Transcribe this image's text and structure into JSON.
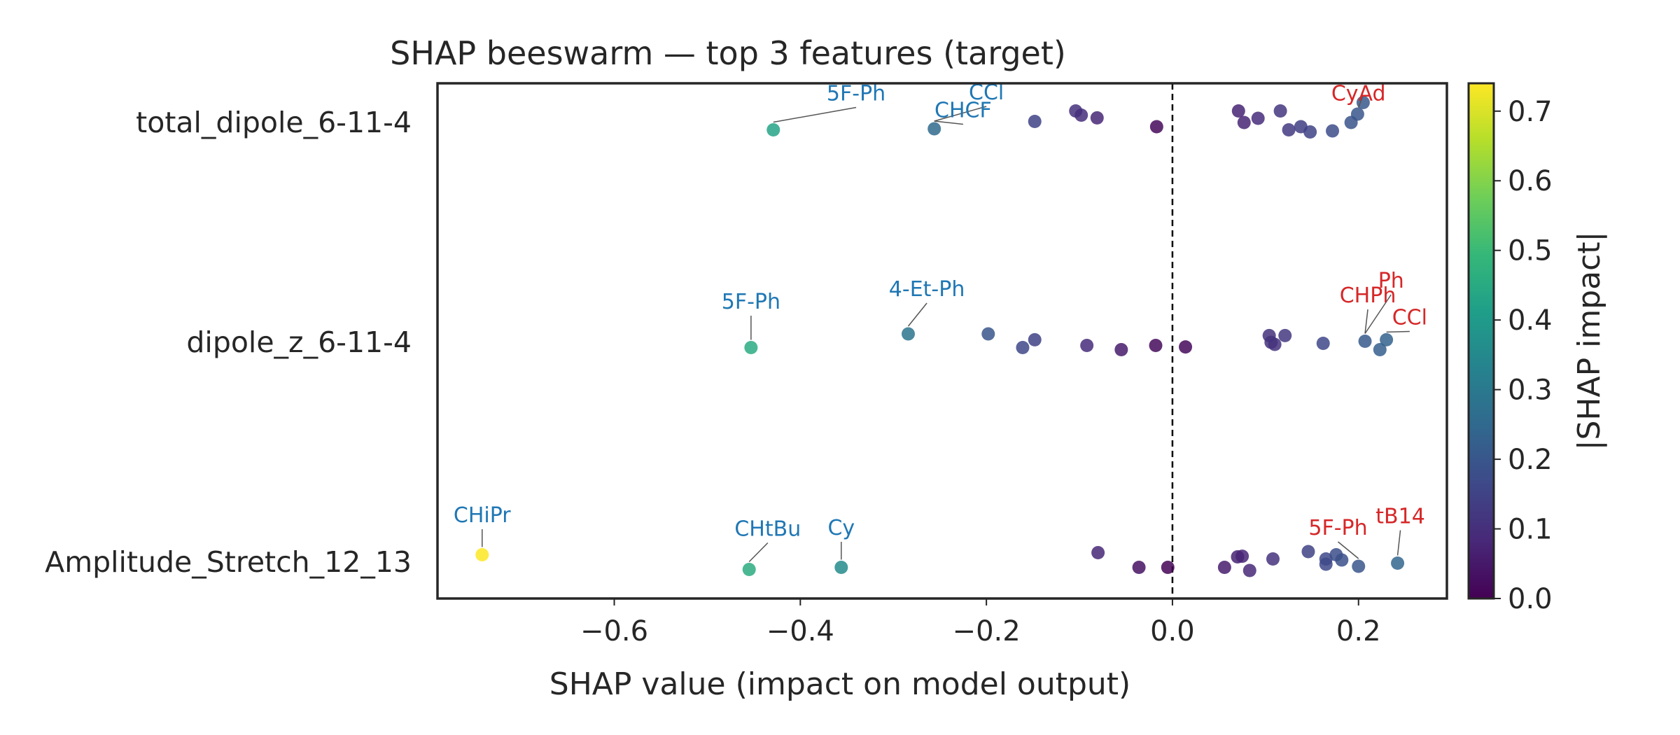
{
  "chart_data": {
    "type": "scatter",
    "title": "SHAP beeswarm — top 3 features (target)",
    "xlabel": "SHAP value (impact on model output)",
    "xlim": [
      -0.79,
      0.295
    ],
    "xticks": [
      -0.6,
      -0.4,
      -0.2,
      0.0,
      0.2
    ],
    "xtick_labels": [
      "−0.6",
      "−0.4",
      "−0.2",
      "0.0",
      "0.2"
    ],
    "zero_line": true,
    "colorbar": {
      "label": "|SHAP impact|",
      "range": [
        0.0,
        0.74
      ],
      "ticks": [
        0.0,
        0.1,
        0.2,
        0.3,
        0.4,
        0.5,
        0.6,
        0.7
      ],
      "tick_labels": [
        "0.0",
        "0.1",
        "0.2",
        "0.3",
        "0.4",
        "0.5",
        "0.6",
        "0.7"
      ],
      "colormap": "viridis"
    },
    "annotation_colors": {
      "negative": "#1f77b4",
      "positive": "#d62728"
    },
    "features": [
      {
        "name": "total_dipole_6-11-4",
        "points": [
          {
            "x": -0.429,
            "jitter": -0.035
          },
          {
            "x": -0.256,
            "jitter": -0.03
          },
          {
            "x": -0.148,
            "jitter": 0.005
          },
          {
            "x": -0.104,
            "jitter": 0.055
          },
          {
            "x": -0.098,
            "jitter": 0.035
          },
          {
            "x": -0.081,
            "jitter": 0.022
          },
          {
            "x": -0.017,
            "jitter": -0.02
          },
          {
            "x": 0.071,
            "jitter": 0.055
          },
          {
            "x": 0.077,
            "jitter": 0.0
          },
          {
            "x": 0.092,
            "jitter": 0.02
          },
          {
            "x": 0.116,
            "jitter": 0.055
          },
          {
            "x": 0.125,
            "jitter": -0.035
          },
          {
            "x": 0.138,
            "jitter": -0.02
          },
          {
            "x": 0.148,
            "jitter": -0.045
          },
          {
            "x": 0.172,
            "jitter": -0.04
          },
          {
            "x": 0.192,
            "jitter": 0.0
          },
          {
            "x": 0.199,
            "jitter": 0.04
          },
          {
            "x": 0.205,
            "jitter": 0.095
          }
        ],
        "annotations": [
          {
            "text": "5F-Ph",
            "x": -0.429,
            "jitter": -0.035,
            "side": "negative",
            "tx": -0.34,
            "ty": 0.105
          },
          {
            "text": "CCl\u0003",
            "x": -0.256,
            "jitter": -0.03,
            "side": "negative",
            "tx": -0.2,
            "ty": 0.11
          },
          {
            "text": "CH\u0003CF\u0003",
            "x": -0.256,
            "jitter": -0.03,
            "side": "negative",
            "tx": -0.225,
            "ty": 0.025
          },
          {
            "text": "CyAd",
            "x": 0.205,
            "jitter": 0.095,
            "side": "positive",
            "tx": 0.2,
            "ty": 0.105
          }
        ]
      },
      {
        "name": "dipole_z_6-11-4",
        "points": [
          {
            "x": -0.453,
            "jitter": -0.025
          },
          {
            "x": -0.284,
            "jitter": 0.04
          },
          {
            "x": -0.198,
            "jitter": 0.04
          },
          {
            "x": -0.148,
            "jitter": 0.012
          },
          {
            "x": -0.161,
            "jitter": -0.025
          },
          {
            "x": -0.092,
            "jitter": -0.015
          },
          {
            "x": -0.055,
            "jitter": -0.035
          },
          {
            "x": -0.018,
            "jitter": -0.015
          },
          {
            "x": 0.014,
            "jitter": -0.022
          },
          {
            "x": 0.104,
            "jitter": 0.032
          },
          {
            "x": 0.106,
            "jitter": 0.0
          },
          {
            "x": 0.11,
            "jitter": -0.01
          },
          {
            "x": 0.121,
            "jitter": 0.032
          },
          {
            "x": 0.162,
            "jitter": -0.005
          },
          {
            "x": 0.207,
            "jitter": 0.005
          },
          {
            "x": 0.223,
            "jitter": -0.035
          },
          {
            "x": 0.23,
            "jitter": 0.012
          }
        ],
        "annotations": [
          {
            "text": "5F-Ph",
            "x": -0.453,
            "jitter": -0.025,
            "side": "negative",
            "tx": -0.453,
            "ty": 0.16
          },
          {
            "text": "4-Et-Ph",
            "x": -0.284,
            "jitter": 0.04,
            "side": "negative",
            "tx": -0.264,
            "ty": 0.22
          },
          {
            "text": "Ph",
            "x": 0.207,
            "jitter": 0.005,
            "side": "positive",
            "tx": 0.235,
            "ty": 0.26
          },
          {
            "text": "CHPh\u0003",
            "x": 0.207,
            "jitter": 0.005,
            "side": "positive",
            "tx": 0.21,
            "ty": 0.19
          },
          {
            "text": "CCl\u0003",
            "x": 0.23,
            "jitter": 0.012,
            "side": "positive",
            "tx": 0.255,
            "ty": 0.085
          }
        ]
      },
      {
        "name": "Amplitude_Stretch_12_13",
        "points": [
          {
            "x": -0.742,
            "jitter": 0.035
          },
          {
            "x": -0.455,
            "jitter": -0.035
          },
          {
            "x": -0.356,
            "jitter": -0.025
          },
          {
            "x": -0.08,
            "jitter": 0.045
          },
          {
            "x": -0.036,
            "jitter": -0.025
          },
          {
            "x": -0.005,
            "jitter": -0.025
          },
          {
            "x": 0.056,
            "jitter": -0.025
          },
          {
            "x": 0.07,
            "jitter": 0.025
          },
          {
            "x": 0.075,
            "jitter": 0.028
          },
          {
            "x": 0.083,
            "jitter": -0.04
          },
          {
            "x": 0.108,
            "jitter": 0.015
          },
          {
            "x": 0.146,
            "jitter": 0.05
          },
          {
            "x": 0.165,
            "jitter": 0.015
          },
          {
            "x": 0.165,
            "jitter": -0.01
          },
          {
            "x": 0.176,
            "jitter": 0.035
          },
          {
            "x": 0.182,
            "jitter": 0.01
          },
          {
            "x": 0.2,
            "jitter": -0.02
          },
          {
            "x": 0.242,
            "jitter": -0.005
          }
        ],
        "annotations": [
          {
            "text": "CH\u0003iPr",
            "x": -0.742,
            "jitter": 0.035,
            "side": "negative",
            "tx": -0.742,
            "ty": 0.19
          },
          {
            "text": "CH\u0003tBu",
            "x": -0.455,
            "jitter": -0.035,
            "side": "negative",
            "tx": -0.435,
            "ty": 0.125
          },
          {
            "text": "Cy",
            "x": -0.356,
            "jitter": -0.025,
            "side": "negative",
            "tx": -0.356,
            "ty": 0.13
          },
          {
            "text": "5F-Ph",
            "x": 0.2,
            "jitter": -0.02,
            "side": "positive",
            "tx": 0.178,
            "ty": 0.13
          },
          {
            "text": "tB14",
            "x": 0.242,
            "jitter": -0.005,
            "side": "positive",
            "tx": 0.245,
            "ty": 0.185
          }
        ]
      }
    ]
  }
}
